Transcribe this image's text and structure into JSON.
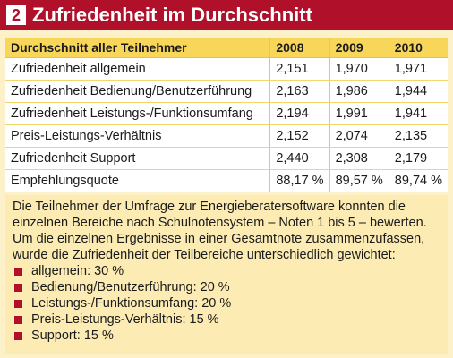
{
  "header": {
    "number": "2",
    "title": "Zufriedenheit im Durchschnitt"
  },
  "table": {
    "columns": [
      "Durchschnitt aller Teilnehmer",
      "2008",
      "2009",
      "2010"
    ],
    "rows": [
      {
        "label": "Zufriedenheit allgemein",
        "values": [
          "2,151",
          "1,970",
          "1,971"
        ]
      },
      {
        "label": "Zufriedenheit Bedienung/Benutzerführung",
        "values": [
          "2,163",
          "1,986",
          "1,944"
        ]
      },
      {
        "label": "Zufriedenheit Leistungs-/Funktionsumfang",
        "values": [
          "2,194",
          "1,991",
          "1,941"
        ]
      },
      {
        "label": "Preis-Leistungs-Verhältnis",
        "values": [
          "2,152",
          "2,074",
          "2,135"
        ]
      },
      {
        "label": "Zufriedenheit Support",
        "values": [
          "2,440",
          "2,308",
          "2,179"
        ]
      },
      {
        "label": "Empfehlungsquote",
        "values": [
          "88,17 %",
          "89,57 %",
          "89,74 %"
        ]
      }
    ]
  },
  "note": {
    "paragraph": "Die Teilnehmer der Umfrage zur Energieberatersoftware konnten die einzelnen Bereiche nach Schulnotensystem – Noten 1 bis 5 – bewerten. Um die einzelnen Ergebnisse in einer Gesamtnote zusammenzufassen, wurde die Zufriedenheit der Teilbereiche unterschiedlich gewichtet:",
    "weights": [
      "allgemein: 30 %",
      "Bedienung/Benutzerführung: 20 %",
      "Leistungs-/Funktionsumfang: 20 %",
      "Preis-Leistungs-Verhältnis: 15 %",
      "Support: 15 %"
    ]
  },
  "colors": {
    "accent": "#b0102a",
    "header_row": "#f7d65a",
    "background": "#fdf1c9"
  }
}
